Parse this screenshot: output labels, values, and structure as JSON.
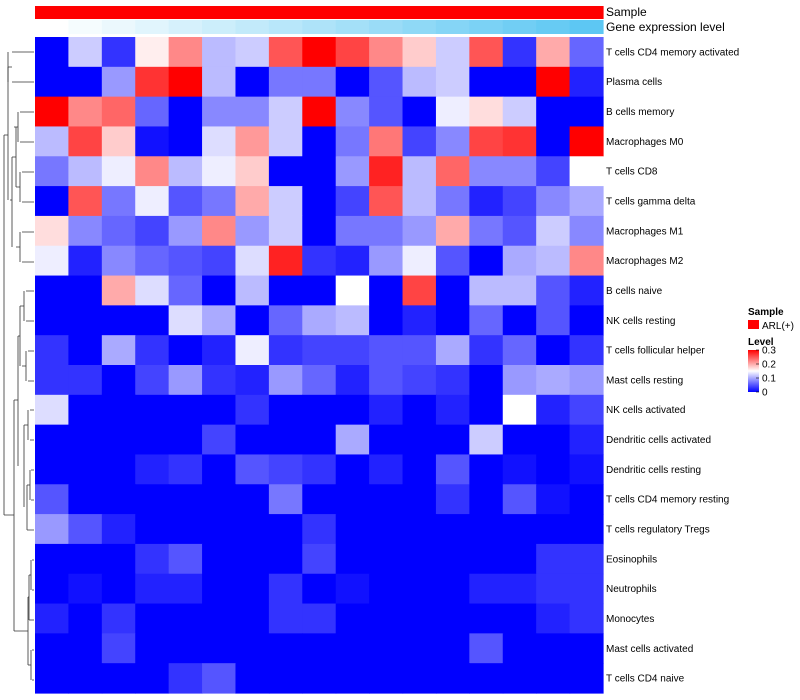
{
  "chart_data": {
    "type": "heatmap",
    "annotations": {
      "sample_label": "Sample",
      "gene_label": "Gene expression level"
    },
    "rows": [
      "T cells CD4 memory activated",
      "Plasma cells",
      "B cells memory",
      "Macrophages M0",
      "T cells CD8",
      "T cells gamma delta",
      "Macrophages M1",
      "Macrophages M2",
      "B cells naive",
      "NK cells resting",
      "T cells follicular helper",
      "Mast cells resting",
      "NK cells activated",
      "Dendritic cells activated",
      "Dendritic cells resting",
      "T cells CD4 memory resting",
      "T cells regulatory  Tregs",
      "Eosinophils",
      "Neutrophils",
      "Monocytes",
      "Mast cells activated",
      "T cells CD4 naive"
    ],
    "n_columns": 17,
    "values": [
      [
        0.0,
        0.12,
        0.03,
        0.16,
        0.22,
        0.11,
        0.12,
        0.25,
        0.3,
        0.26,
        0.22,
        0.18,
        0.12,
        0.25,
        0.03,
        0.2,
        0.06
      ],
      [
        0.0,
        0.0,
        0.09,
        0.27,
        0.3,
        0.11,
        0.0,
        0.07,
        0.07,
        0.0,
        0.05,
        0.11,
        0.12,
        0.0,
        0.0,
        0.3,
        0.02
      ],
      [
        0.3,
        0.22,
        0.24,
        0.06,
        0.0,
        0.08,
        0.08,
        0.12,
        0.3,
        0.08,
        0.05,
        0.0,
        0.14,
        0.17,
        0.12,
        0.0,
        0.0
      ],
      [
        0.11,
        0.26,
        0.18,
        0.01,
        0.0,
        0.13,
        0.21,
        0.12,
        0.0,
        0.07,
        0.23,
        0.04,
        0.08,
        0.26,
        0.27,
        0.0,
        0.3
      ],
      [
        0.07,
        0.11,
        0.14,
        0.22,
        0.11,
        0.14,
        0.18,
        0.0,
        0.0,
        0.09,
        0.28,
        0.11,
        0.24,
        0.08,
        0.08,
        0.04,
        0.15
      ],
      [
        0.0,
        0.25,
        0.07,
        0.14,
        0.05,
        0.07,
        0.2,
        0.12,
        0.0,
        0.04,
        0.25,
        0.11,
        0.07,
        0.02,
        0.04,
        0.08,
        0.1
      ],
      [
        0.17,
        0.08,
        0.06,
        0.04,
        0.09,
        0.22,
        0.09,
        0.12,
        0.0,
        0.07,
        0.07,
        0.09,
        0.2,
        0.07,
        0.05,
        0.12,
        0.08
      ],
      [
        0.14,
        0.02,
        0.08,
        0.06,
        0.05,
        0.04,
        0.13,
        0.28,
        0.03,
        0.02,
        0.09,
        0.14,
        0.05,
        0.0,
        0.1,
        0.11,
        0.22
      ],
      [
        0.0,
        0.0,
        0.2,
        0.13,
        0.06,
        0.0,
        0.11,
        0.0,
        0.0,
        0.15,
        0.0,
        0.26,
        0.0,
        0.11,
        0.11,
        0.05,
        0.02
      ],
      [
        0.0,
        0.0,
        0.0,
        0.0,
        0.13,
        0.1,
        0.0,
        0.06,
        0.1,
        0.11,
        0.0,
        0.02,
        0.0,
        0.06,
        0.0,
        0.05,
        0.0
      ],
      [
        0.03,
        0.0,
        0.1,
        0.03,
        0.0,
        0.02,
        0.14,
        0.03,
        0.04,
        0.04,
        0.05,
        0.05,
        0.1,
        0.03,
        0.06,
        0.0,
        0.03
      ],
      [
        0.03,
        0.03,
        0.0,
        0.04,
        0.09,
        0.03,
        0.02,
        0.09,
        0.06,
        0.02,
        0.05,
        0.04,
        0.03,
        0.0,
        0.09,
        0.1,
        0.09
      ],
      [
        0.13,
        0.0,
        0.0,
        0.0,
        0.0,
        0.0,
        0.03,
        0.0,
        0.0,
        0.0,
        0.02,
        0.0,
        0.02,
        0.0,
        0.15,
        0.02,
        0.04
      ],
      [
        0.0,
        0.0,
        0.0,
        0.0,
        0.0,
        0.04,
        0.0,
        0.0,
        0.0,
        0.1,
        0.0,
        0.0,
        0.0,
        0.12,
        0.0,
        0.0,
        0.02
      ],
      [
        0.0,
        0.0,
        0.0,
        0.02,
        0.03,
        0.0,
        0.05,
        0.04,
        0.03,
        0.0,
        0.02,
        0.0,
        0.05,
        0.0,
        0.01,
        0.0,
        0.01
      ],
      [
        0.05,
        0.0,
        0.0,
        0.0,
        0.0,
        0.0,
        0.0,
        0.07,
        0.0,
        0.0,
        0.0,
        0.0,
        0.03,
        0.0,
        0.05,
        0.01,
        0.0
      ],
      [
        0.09,
        0.05,
        0.02,
        0.0,
        0.0,
        0.0,
        0.0,
        0.0,
        0.03,
        0.0,
        0.0,
        0.0,
        0.0,
        0.0,
        0.0,
        0.0,
        0.0
      ],
      [
        0.0,
        0.0,
        0.0,
        0.03,
        0.05,
        0.0,
        0.0,
        0.0,
        0.04,
        0.0,
        0.0,
        0.0,
        0.0,
        0.0,
        0.0,
        0.03,
        0.03
      ],
      [
        0.0,
        0.01,
        0.0,
        0.02,
        0.02,
        0.0,
        0.0,
        0.03,
        0.0,
        0.01,
        0.0,
        0.0,
        0.0,
        0.02,
        0.02,
        0.03,
        0.03
      ],
      [
        0.02,
        0.0,
        0.03,
        0.0,
        0.0,
        0.0,
        0.0,
        0.03,
        0.03,
        0.0,
        0.0,
        0.0,
        0.0,
        0.0,
        0.0,
        0.02,
        0.03
      ],
      [
        0.0,
        0.0,
        0.04,
        0.0,
        0.0,
        0.0,
        0.0,
        0.0,
        0.0,
        0.0,
        0.0,
        0.0,
        0.0,
        0.05,
        0.0,
        0.0,
        0.0
      ],
      [
        0.0,
        0.0,
        0.0,
        0.0,
        0.03,
        0.05,
        0.0,
        0.0,
        0.0,
        0.0,
        0.0,
        0.0,
        0.0,
        0.0,
        0.0,
        0.0,
        0.0
      ]
    ],
    "gene_expression_level": [
      0.0,
      0.06,
      0.12,
      0.18,
      0.24,
      0.3,
      0.36,
      0.42,
      0.48,
      0.54,
      0.6,
      0.66,
      0.72,
      0.78,
      0.84,
      0.9,
      0.96
    ],
    "sample_groups": [
      "ARL(+)",
      "ARL(+)",
      "ARL(+)",
      "ARL(+)",
      "ARL(+)",
      "ARL(+)",
      "ARL(+)",
      "ARL(+)",
      "ARL(+)",
      "ARL(+)",
      "ARL(+)",
      "ARL(+)",
      "ARL(+)",
      "ARL(+)",
      "ARL(+)",
      "ARL(+)",
      "ARL(+)"
    ],
    "legend": {
      "sample_title": "Sample",
      "sample_entry": "ARL(+)",
      "level_title": "Level",
      "ticks": [
        "0.3",
        "0.2",
        "0.1",
        "0"
      ],
      "tick_values": [
        0.3,
        0.2,
        0.1,
        0
      ]
    },
    "value_range": [
      0,
      0.3
    ],
    "colors": {
      "low": "#0000FF",
      "mid": "#FFFFFF",
      "high": "#FF0000",
      "sample_annotation": "#FF0000",
      "gene_low": "#FFFFFF",
      "gene_high": "#56C5F2"
    }
  }
}
